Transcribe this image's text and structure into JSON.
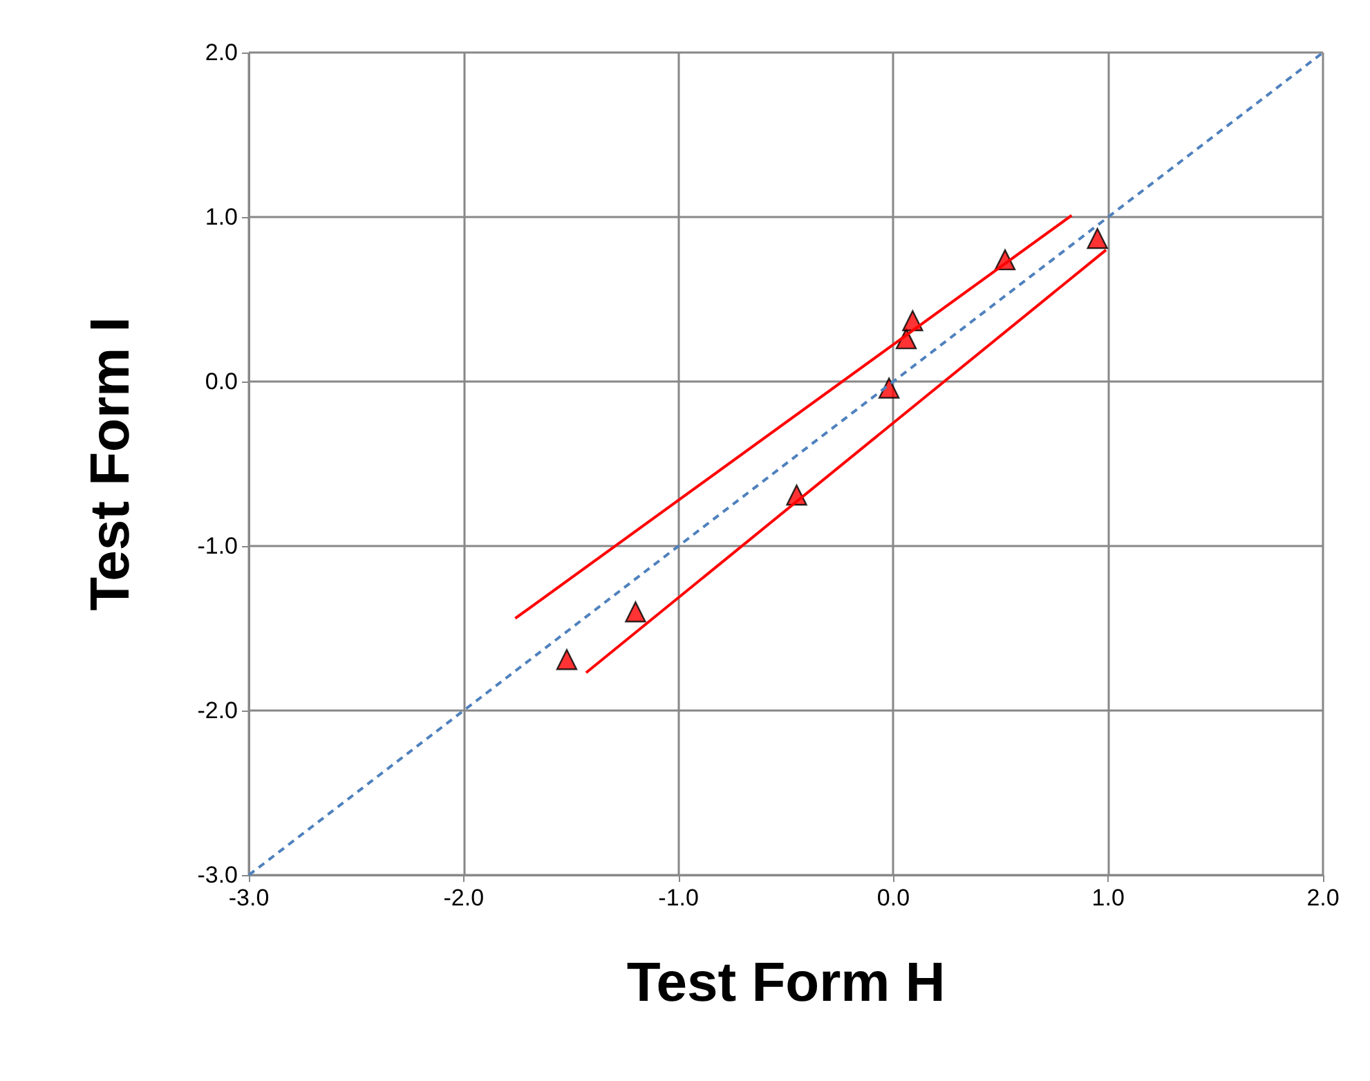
{
  "chart_data": {
    "type": "scatter",
    "xlabel": "Test Form H",
    "ylabel": "Test Form I",
    "xlim": [
      -3,
      2
    ],
    "ylim": [
      -3,
      2
    ],
    "xticks": [
      {
        "value": -3,
        "label": "-3.0"
      },
      {
        "value": -2,
        "label": "-2.0"
      },
      {
        "value": -1,
        "label": "-1.0"
      },
      {
        "value": 0,
        "label": "0.0"
      },
      {
        "value": 1,
        "label": "1.0"
      },
      {
        "value": 2,
        "label": "2.0"
      }
    ],
    "yticks": [
      {
        "value": -3,
        "label": "-3.0"
      },
      {
        "value": -2,
        "label": "-2.0"
      },
      {
        "value": -1,
        "label": "-1.0"
      },
      {
        "value": 0,
        "label": "0.0"
      },
      {
        "value": 1,
        "label": "1.0"
      },
      {
        "value": 2,
        "label": "2.0"
      }
    ],
    "grid": true,
    "series": [
      {
        "type": "line",
        "color": "#4f81bd",
        "x": [
          -3,
          2
        ],
        "values": [
          -3,
          2
        ],
        "marker": "none",
        "line_style": "dashed"
      },
      {
        "type": "line",
        "color": "#ff0000",
        "x": [
          -1.76,
          0.83
        ],
        "values": [
          -1.44,
          1.01
        ],
        "marker": "none",
        "line_style": "solid"
      },
      {
        "type": "line",
        "color": "#ff0000",
        "x": [
          -1.43,
          0.99
        ],
        "values": [
          -1.77,
          0.8
        ],
        "marker": "none",
        "line_style": "solid"
      },
      {
        "color": "#ff0000",
        "x": [
          -1.52,
          -1.2,
          -0.45,
          -0.02,
          0.06,
          0.09,
          0.52,
          0.95
        ],
        "values": [
          -1.69,
          -1.4,
          -0.69,
          -0.04,
          0.26,
          0.37,
          0.74,
          0.87
        ],
        "marker": "triangle"
      }
    ]
  }
}
